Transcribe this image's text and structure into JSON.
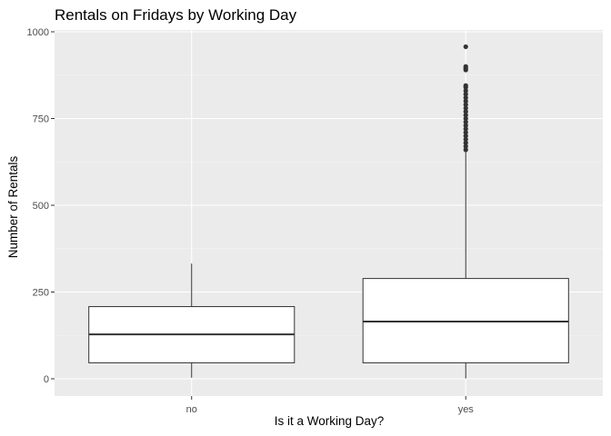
{
  "chart_data": {
    "type": "boxplot",
    "title": "Rentals on Fridays by Working Day",
    "xlabel": "Is it a Working Day?",
    "ylabel": "Number of Rentals",
    "ylim": [
      -20,
      1000
    ],
    "yticks": [
      0,
      250,
      500,
      750,
      1000
    ],
    "grid": true,
    "legend": "none",
    "categories": [
      "no",
      "yes"
    ],
    "boxes": [
      {
        "category": "no",
        "min": 3,
        "q1": 46,
        "median": 128,
        "q3": 208,
        "max": 332,
        "outliers": []
      },
      {
        "category": "yes",
        "min": 1,
        "q1": 46,
        "median": 165,
        "q3": 289,
        "max": 653,
        "outliers": [
          660,
          670,
          680,
          690,
          700,
          710,
          720,
          730,
          740,
          750,
          760,
          770,
          780,
          790,
          800,
          810,
          820,
          830,
          840,
          845,
          890,
          895,
          900,
          957
        ]
      }
    ],
    "colors": {
      "panel": "#ebebeb",
      "grid_major": "#ffffff",
      "grid_minor": "#f5f5f5",
      "box_fill": "#ffffff",
      "box_stroke": "#333333"
    }
  }
}
